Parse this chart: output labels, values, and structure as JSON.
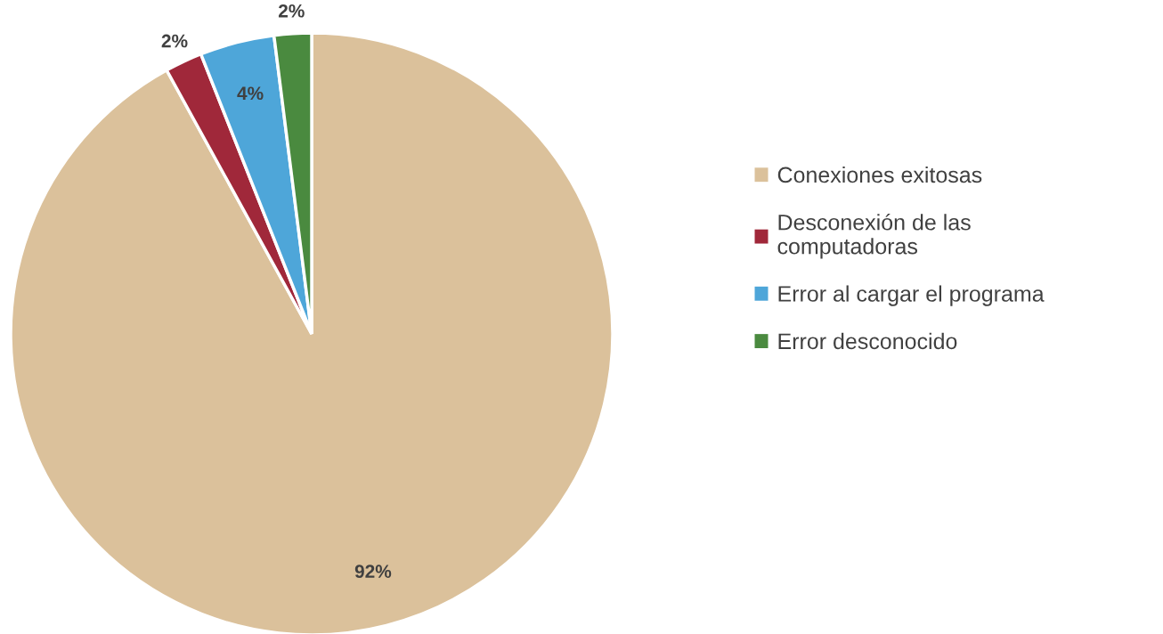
{
  "chart_data": {
    "type": "pie",
    "categories": [
      "Conexiones exitosas",
      "Desconexión de las\ncomputadoras",
      "Error al cargar el programa",
      "Error desconocido"
    ],
    "values": [
      92,
      2,
      4,
      2
    ],
    "colors": [
      "#dbc19b",
      "#a0283a",
      "#4ea6d9",
      "#4a8a3f"
    ],
    "value_labels": [
      "92%",
      "2%",
      "4%",
      "2%"
    ],
    "legend": "right"
  }
}
